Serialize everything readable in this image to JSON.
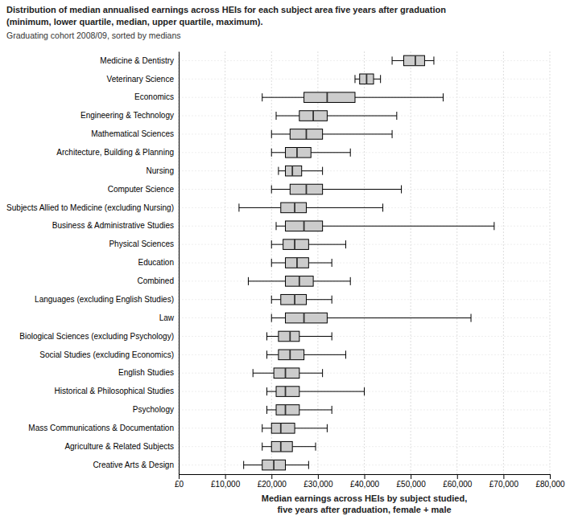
{
  "chart_data": {
    "type": "box",
    "orientation": "horizontal",
    "title": [
      "Distribution of median annualised earnings across HEIs for each subject area five years after graduation",
      "(minimum, lower quartile, median, upper quartile, maximum)."
    ],
    "subtitle": "Graduating cohort 2008/09, sorted by medians",
    "xlabel": "Median earnings across HEIs by subject studied,\nfive years after graduation, female + male",
    "categories": [
      "Medicine & Dentistry",
      "Veterinary Science",
      "Economics",
      "Engineering & Technology",
      "Mathematical Sciences",
      "Architecture, Building & Planning",
      "Nursing",
      "Computer Science",
      "Subjects Allied to Medicine (excluding Nursing)",
      "Business & Administrative Studies",
      "Physical Sciences",
      "Education",
      "Combined",
      "Languages (excluding English Studies)",
      "Law",
      "Biological Sciences (excluding Psychology)",
      "Social Studies (excluding Economics)",
      "English Studies",
      "Historical & Philosophical Studies",
      "Psychology",
      "Mass Communications & Documentation",
      "Agriculture & Related Subjects",
      "Creative Arts & Design"
    ],
    "min": [
      46000,
      38000,
      18000,
      21000,
      20000,
      20000,
      21500,
      20000,
      13000,
      21000,
      20000,
      20000,
      15000,
      20000,
      20000,
      19000,
      19000,
      16000,
      19000,
      19000,
      18000,
      18000,
      14000
    ],
    "q1": [
      48500,
      39000,
      27000,
      26000,
      24000,
      23000,
      23000,
      24000,
      22000,
      23000,
      22500,
      23000,
      23000,
      22000,
      23000,
      21500,
      21500,
      20500,
      21000,
      21000,
      20000,
      20000,
      18000
    ],
    "median": [
      51000,
      40500,
      32000,
      29000,
      27500,
      25500,
      24500,
      27500,
      25000,
      27000,
      25000,
      25500,
      26000,
      25000,
      27000,
      24000,
      24000,
      23000,
      23000,
      23000,
      22000,
      22000,
      20500
    ],
    "q3": [
      53000,
      42000,
      38000,
      32000,
      31000,
      28500,
      26500,
      31000,
      27500,
      31000,
      28000,
      28000,
      29000,
      27500,
      32000,
      26000,
      27000,
      26000,
      26000,
      26000,
      25000,
      24500,
      23000
    ],
    "max": [
      55000,
      43500,
      57000,
      47000,
      46000,
      37000,
      31000,
      48000,
      44000,
      68000,
      36000,
      33000,
      37000,
      33000,
      63000,
      33000,
      36000,
      31000,
      40000,
      33000,
      32000,
      29500,
      28000
    ],
    "xlim": [
      0,
      80000
    ],
    "xticks": [
      {
        "value": 0,
        "label": "£0"
      },
      {
        "value": 10000,
        "label": "£10,000"
      },
      {
        "value": 20000,
        "label": "£20,000"
      },
      {
        "value": 30000,
        "label": "£30,000"
      },
      {
        "value": 40000,
        "label": "£40,000"
      },
      {
        "value": 50000,
        "label": "£50,000"
      },
      {
        "value": 60000,
        "label": "£60,000"
      },
      {
        "value": 70000,
        "label": "£70,000"
      },
      {
        "value": 80000,
        "label": "£80,000"
      }
    ],
    "color": "#cccccc",
    "grid": true
  }
}
